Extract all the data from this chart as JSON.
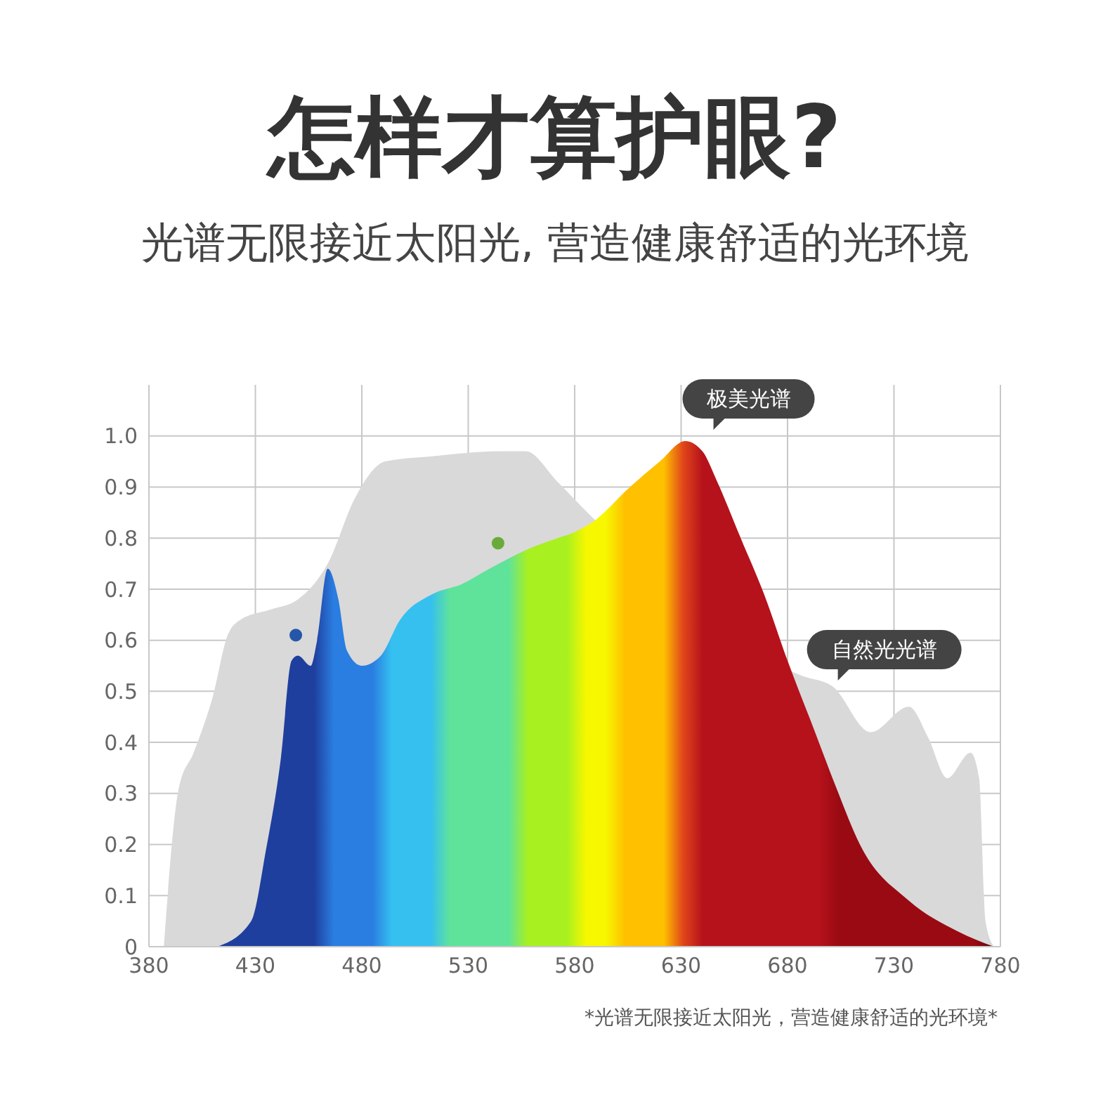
{
  "chart_data": {
    "type": "area",
    "title": "怎样才算护眼?",
    "subtitle": "光谱无限接近太阳光, 营造健康舒适的光环境",
    "annotations": [
      "*光谱无限接近太阳光，营造健康舒适的光环境*"
    ],
    "xlim": [
      380,
      780
    ],
    "xticks": [
      380,
      430,
      480,
      530,
      580,
      630,
      680,
      730,
      780
    ],
    "ylim": [
      0,
      1.1
    ],
    "yticks": [
      0,
      0.1,
      0.2,
      0.3,
      0.4,
      0.5,
      0.6,
      0.7,
      0.8,
      0.9,
      {
        "value": 1,
        "label": "1.0"
      }
    ],
    "grid": true,
    "series": [
      {
        "name": "自然光光谱",
        "color": "#d9d9d9",
        "x": [
          387,
          394,
          401,
          410,
          417,
          423,
          437,
          450,
          464,
          477,
          491,
          513,
          545,
          557,
          572,
          586,
          665,
          687,
          701,
          719,
          737,
          746,
          755,
          766,
          770,
          773,
          777
        ],
        "values": [
          0,
          0.31,
          0.38,
          0.49,
          0.61,
          0.64,
          0.66,
          0.68,
          0.75,
          0.88,
          0.95,
          0.96,
          0.97,
          0.97,
          0.91,
          0.85,
          null,
          0.53,
          0.51,
          0.42,
          0.47,
          0.41,
          0.33,
          0.38,
          0.33,
          0.05,
          0
        ]
      },
      {
        "name": "极美光谱",
        "color": "#b5121b",
        "x": [
          412,
          428,
          435,
          442,
          447,
          450,
          456,
          459,
          464,
          469,
          473,
          480,
          489,
          498,
          513,
          527,
          540,
          559,
          572,
          579,
          588,
          606,
          620,
          632,
          640,
          647,
          658,
          669,
          680,
          692,
          703,
          714,
          737,
          760,
          777
        ],
        "values": [
          0,
          0.05,
          0.19,
          0.37,
          0.56,
          0.57,
          0.55,
          0.6,
          0.74,
          0.68,
          0.58,
          0.55,
          0.57,
          0.64,
          0.69,
          0.71,
          0.74,
          0.78,
          0.8,
          0.81,
          0.83,
          0.9,
          0.95,
          0.99,
          0.97,
          0.91,
          0.8,
          0.69,
          0.56,
          0.43,
          0.31,
          0.2,
          0.09,
          0.03,
          0
        ]
      },
      {
        "type": "scatter",
        "x": [
          449,
          544
        ],
        "values": [
          0.61,
          0.79
        ],
        "colors": [
          "#2457a8",
          "#6aaa3a"
        ]
      }
    ]
  }
}
